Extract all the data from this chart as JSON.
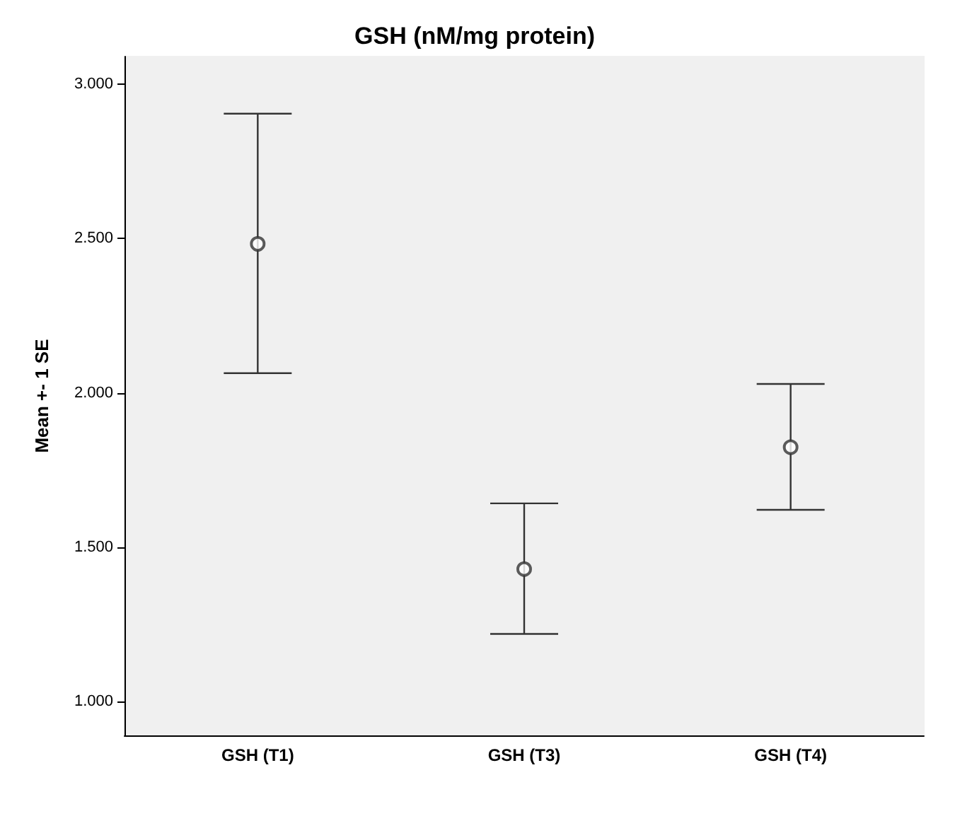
{
  "chart_data": {
    "type": "scatter",
    "title": "GSH (nM/mg protein)",
    "ylabel": "Mean +- 1 SE",
    "categories": [
      "GSH (T1)",
      "GSH (T3)",
      "GSH (T4)"
    ],
    "values": [
      2.483,
      1.429,
      1.824
    ],
    "errors": [
      [
        2.064,
        2.905
      ],
      [
        1.219,
        1.642
      ],
      [
        1.621,
        2.029
      ]
    ],
    "color": "#333333",
    "marker": "circle",
    "grid": false,
    "ylim": [
      0.89,
      3.09
    ],
    "yticks": [
      {
        "value": 1,
        "label": "1.000"
      },
      {
        "value": 1.5,
        "label": "1.500"
      },
      {
        "value": 2,
        "label": "2.000"
      },
      {
        "value": 2.5,
        "label": "2.500"
      },
      {
        "value": 3,
        "label": "3.000"
      }
    ]
  }
}
